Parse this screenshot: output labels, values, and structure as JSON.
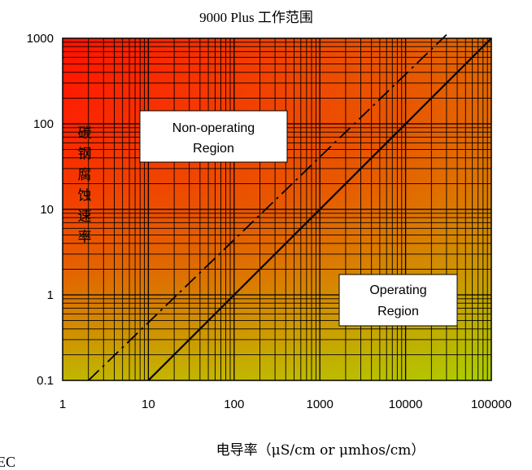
{
  "chart_data": {
    "type": "line",
    "title": "9000 Plus 工作范围",
    "xlabel": "电导率（μS/cm or μmhos/cm）",
    "ylabel": "碳钢腐蚀速率",
    "x_scale": "log",
    "y_scale": "log",
    "xlim": [
      1,
      100000
    ],
    "ylim": [
      0.1,
      1000
    ],
    "x_ticks": [
      "1",
      "10",
      "100",
      "1000",
      "10000",
      "100000"
    ],
    "y_ticks": [
      "0.1",
      "1",
      "10",
      "100",
      "1000"
    ],
    "grid": true,
    "background": "gradient red (top-left) → orange → yellow-green (bottom-right)",
    "series": [
      {
        "style": "solid",
        "x": [
          10,
          100000
        ],
        "y": [
          0.1,
          1000
        ]
      },
      {
        "style": "dash-dot",
        "x": [
          2,
          30000
        ],
        "y": [
          0.1,
          1100
        ]
      }
    ],
    "annotations": [
      {
        "lines": [
          "Non-operating",
          "Region"
        ]
      },
      {
        "lines": [
          "Operating",
          "Region"
        ]
      }
    ],
    "corner_label": "EC"
  },
  "colors": {
    "top_left": "#ff1a00",
    "top_right": "#e06a00",
    "bottom_left": "#e89a00",
    "bottom_right": "#a8d800",
    "grid": "#000000"
  }
}
